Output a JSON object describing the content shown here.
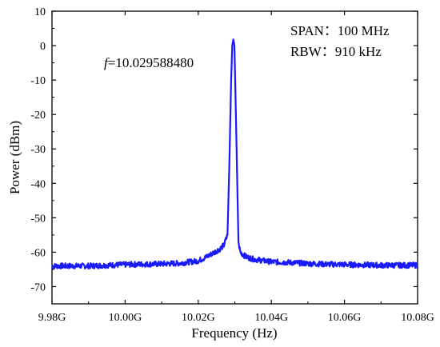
{
  "chart_data": {
    "type": "line",
    "title": "",
    "xlabel": "Frequency (Hz)",
    "ylabel": "Power (dBm)",
    "xlim": [
      9.98,
      10.08
    ],
    "ylim": [
      -75,
      10
    ],
    "x_ticks": [
      9.98,
      10.0,
      10.02,
      10.04,
      10.06,
      10.08
    ],
    "x_tick_labels": [
      "9.98G",
      "10.00G",
      "10.02G",
      "10.04G",
      "10.06G",
      "10.08G"
    ],
    "y_ticks": [
      10,
      0,
      -10,
      -20,
      -30,
      -40,
      -50,
      -60,
      -70
    ],
    "y_tick_labels": [
      "10",
      "0",
      "-10",
      "-20",
      "-30",
      "-40",
      "-50",
      "-60",
      "-70"
    ],
    "grid": false,
    "series": [
      {
        "color": "#1a1aff",
        "x": [
          9.98,
          9.985,
          9.99,
          9.995,
          10.0,
          10.005,
          10.01,
          10.015,
          10.02,
          10.022,
          10.024,
          10.026,
          10.027,
          10.028,
          10.0285,
          10.029,
          10.0293,
          10.0296,
          10.0299,
          10.0303,
          10.031,
          10.0315,
          10.033,
          10.035,
          10.038,
          10.04,
          10.045,
          10.05,
          10.055,
          10.06,
          10.065,
          10.07,
          10.075,
          10.08
        ],
        "y": [
          -64,
          -64,
          -64,
          -63.8,
          -63.6,
          -63.5,
          -63.4,
          -63.2,
          -62.5,
          -61.5,
          -60.3,
          -59,
          -58,
          -55,
          -35,
          -10,
          0,
          1.8,
          0,
          -20,
          -57,
          -60,
          -61.3,
          -62,
          -62.5,
          -62.8,
          -63,
          -63.3,
          -63.5,
          -63.6,
          -63.7,
          -63.8,
          -63.8,
          -63.8
        ]
      }
    ],
    "annotations": [
      {
        "italic": "f",
        "text": "=10.029588480"
      },
      {
        "text": "SPAN：100 MHz"
      },
      {
        "text": "RBW：910 kHz"
      }
    ]
  }
}
